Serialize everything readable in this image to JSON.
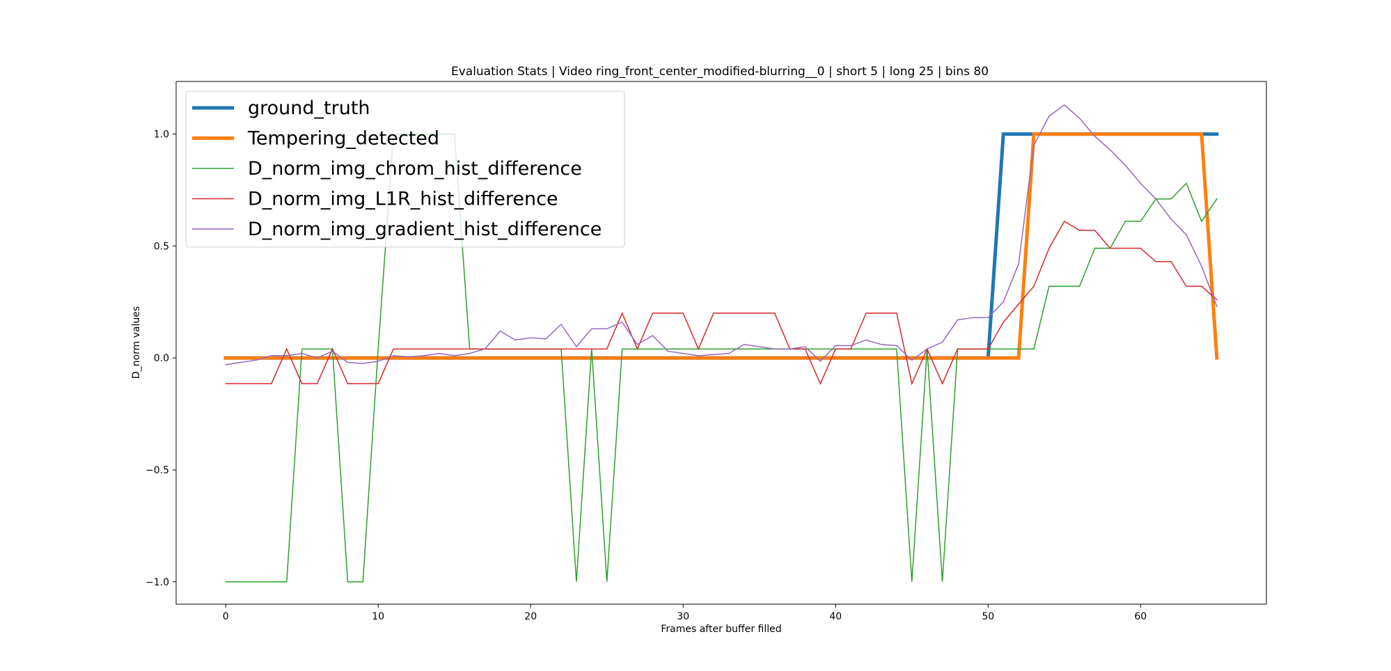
{
  "chart_data": {
    "type": "line",
    "title": "Evaluation Stats | Video ring_front_center_modified-blurring__0 | short 5 | long 25 | bins 80",
    "xlabel": "Frames after buffer filled",
    "ylabel": "D_norm values",
    "xlim": [
      -3.25,
      68.25
    ],
    "ylim": [
      -1.1,
      1.235
    ],
    "xticks": [
      0,
      10,
      20,
      30,
      40,
      50,
      60
    ],
    "yticks": [
      -1.0,
      -0.5,
      0.0,
      0.5,
      1.0
    ],
    "xtick_labels": [
      "0",
      "10",
      "20",
      "30",
      "40",
      "50",
      "60"
    ],
    "ytick_labels": [
      "−1.0",
      "−0.5",
      "0.0",
      "0.5",
      "1.0"
    ],
    "grid": false,
    "legend_position": "top-left",
    "series": [
      {
        "name": "ground_truth",
        "color": "#1f77b4",
        "width": 5,
        "x": [
          0,
          50,
          51,
          65
        ],
        "y": [
          0,
          0,
          1,
          1
        ]
      },
      {
        "name": "Tempering_detected",
        "color": "#ff7f0e",
        "width": 5,
        "x": [
          0,
          52,
          53,
          64,
          65
        ],
        "y": [
          0,
          0,
          1,
          1,
          0
        ]
      },
      {
        "name": "D_norm_img_chrom_hist_difference",
        "color": "#2ca02c",
        "width": 1.5,
        "x": [
          0,
          1,
          2,
          3,
          4,
          5,
          6,
          7,
          8,
          9,
          10,
          11,
          12,
          13,
          14,
          15,
          16,
          17,
          18,
          19,
          20,
          21,
          22,
          23,
          24,
          25,
          26,
          27,
          28,
          29,
          30,
          31,
          32,
          33,
          34,
          35,
          36,
          37,
          38,
          39,
          40,
          41,
          42,
          43,
          44,
          45,
          46,
          47,
          48,
          49,
          50,
          51,
          52,
          53,
          54,
          55,
          56,
          57,
          58,
          59,
          60,
          61,
          62,
          63,
          64,
          65
        ],
        "y": [
          -1,
          -1,
          -1,
          -1,
          -1,
          0.04,
          0.04,
          0.04,
          -1,
          -1,
          0.04,
          1.0,
          1.0,
          1.0,
          1.0,
          1.0,
          0.04,
          0.04,
          0.04,
          0.04,
          0.04,
          0.04,
          0.04,
          -1,
          0.04,
          -1,
          0.04,
          0.04,
          0.04,
          0.04,
          0.04,
          0.04,
          0.04,
          0.04,
          0.04,
          0.04,
          0.04,
          0.04,
          0.04,
          0.04,
          0.04,
          0.04,
          0.04,
          0.04,
          0.04,
          -1,
          0.04,
          -1,
          0.04,
          0.04,
          0.04,
          0.04,
          0.04,
          0.04,
          0.32,
          0.32,
          0.32,
          0.49,
          0.49,
          0.61,
          0.61,
          0.71,
          0.71,
          0.78,
          0.61,
          0.71
        ]
      },
      {
        "name": "D_norm_img_L1R_hist_difference",
        "color": "#d62728",
        "width": 1.5,
        "x": [
          0,
          1,
          2,
          3,
          4,
          5,
          6,
          7,
          8,
          9,
          10,
          11,
          12,
          13,
          14,
          15,
          16,
          17,
          18,
          19,
          20,
          21,
          22,
          23,
          24,
          25,
          26,
          27,
          28,
          29,
          30,
          31,
          32,
          33,
          34,
          35,
          36,
          37,
          38,
          39,
          40,
          41,
          42,
          43,
          44,
          45,
          46,
          47,
          48,
          49,
          50,
          51,
          52,
          53,
          54,
          55,
          56,
          57,
          58,
          59,
          60,
          61,
          62,
          63,
          64,
          65
        ],
        "y": [
          -0.115,
          -0.115,
          -0.115,
          -0.115,
          0.04,
          -0.115,
          -0.115,
          0.04,
          -0.115,
          -0.115,
          -0.115,
          0.04,
          0.04,
          0.04,
          0.04,
          0.04,
          0.04,
          0.04,
          0.04,
          0.04,
          0.04,
          0.04,
          0.04,
          0.04,
          0.04,
          0.04,
          0.2,
          0.04,
          0.2,
          0.2,
          0.2,
          0.04,
          0.2,
          0.2,
          0.2,
          0.2,
          0.2,
          0.04,
          0.04,
          -0.115,
          0.04,
          0.04,
          0.2,
          0.2,
          0.2,
          -0.115,
          0.04,
          -0.115,
          0.04,
          0.04,
          0.04,
          0.16,
          0.24,
          0.32,
          0.49,
          0.61,
          0.57,
          0.57,
          0.49,
          0.49,
          0.49,
          0.43,
          0.43,
          0.32,
          0.32,
          0.26
        ]
      },
      {
        "name": "D_norm_img_gradient_hist_difference",
        "color": "#9467bd",
        "width": 1.5,
        "x": [
          0,
          1,
          2,
          3,
          4,
          5,
          6,
          7,
          8,
          9,
          10,
          11,
          12,
          13,
          14,
          15,
          16,
          17,
          18,
          19,
          20,
          21,
          22,
          23,
          24,
          25,
          26,
          27,
          28,
          29,
          30,
          31,
          32,
          33,
          34,
          35,
          36,
          37,
          38,
          39,
          40,
          41,
          42,
          43,
          44,
          45,
          46,
          47,
          48,
          49,
          50,
          51,
          52,
          53,
          54,
          55,
          56,
          57,
          58,
          59,
          60,
          61,
          62,
          63,
          64,
          65
        ],
        "y": [
          -0.03,
          -0.02,
          -0.01,
          0.01,
          0.01,
          0.02,
          0.0,
          0.03,
          -0.02,
          -0.025,
          -0.015,
          0.01,
          0.005,
          0.01,
          0.02,
          0.01,
          0.02,
          0.04,
          0.12,
          0.08,
          0.09,
          0.085,
          0.15,
          0.05,
          0.13,
          0.13,
          0.16,
          0.06,
          0.1,
          0.03,
          0.02,
          0.01,
          0.015,
          0.02,
          0.06,
          0.05,
          0.04,
          0.04,
          0.05,
          -0.015,
          0.055,
          0.055,
          0.08,
          0.06,
          0.055,
          -0.01,
          0.04,
          0.07,
          0.17,
          0.18,
          0.18,
          0.25,
          0.42,
          0.95,
          1.08,
          1.13,
          1.07,
          0.99,
          0.93,
          0.86,
          0.78,
          0.71,
          0.62,
          0.55,
          0.41,
          0.23
        ]
      }
    ]
  }
}
